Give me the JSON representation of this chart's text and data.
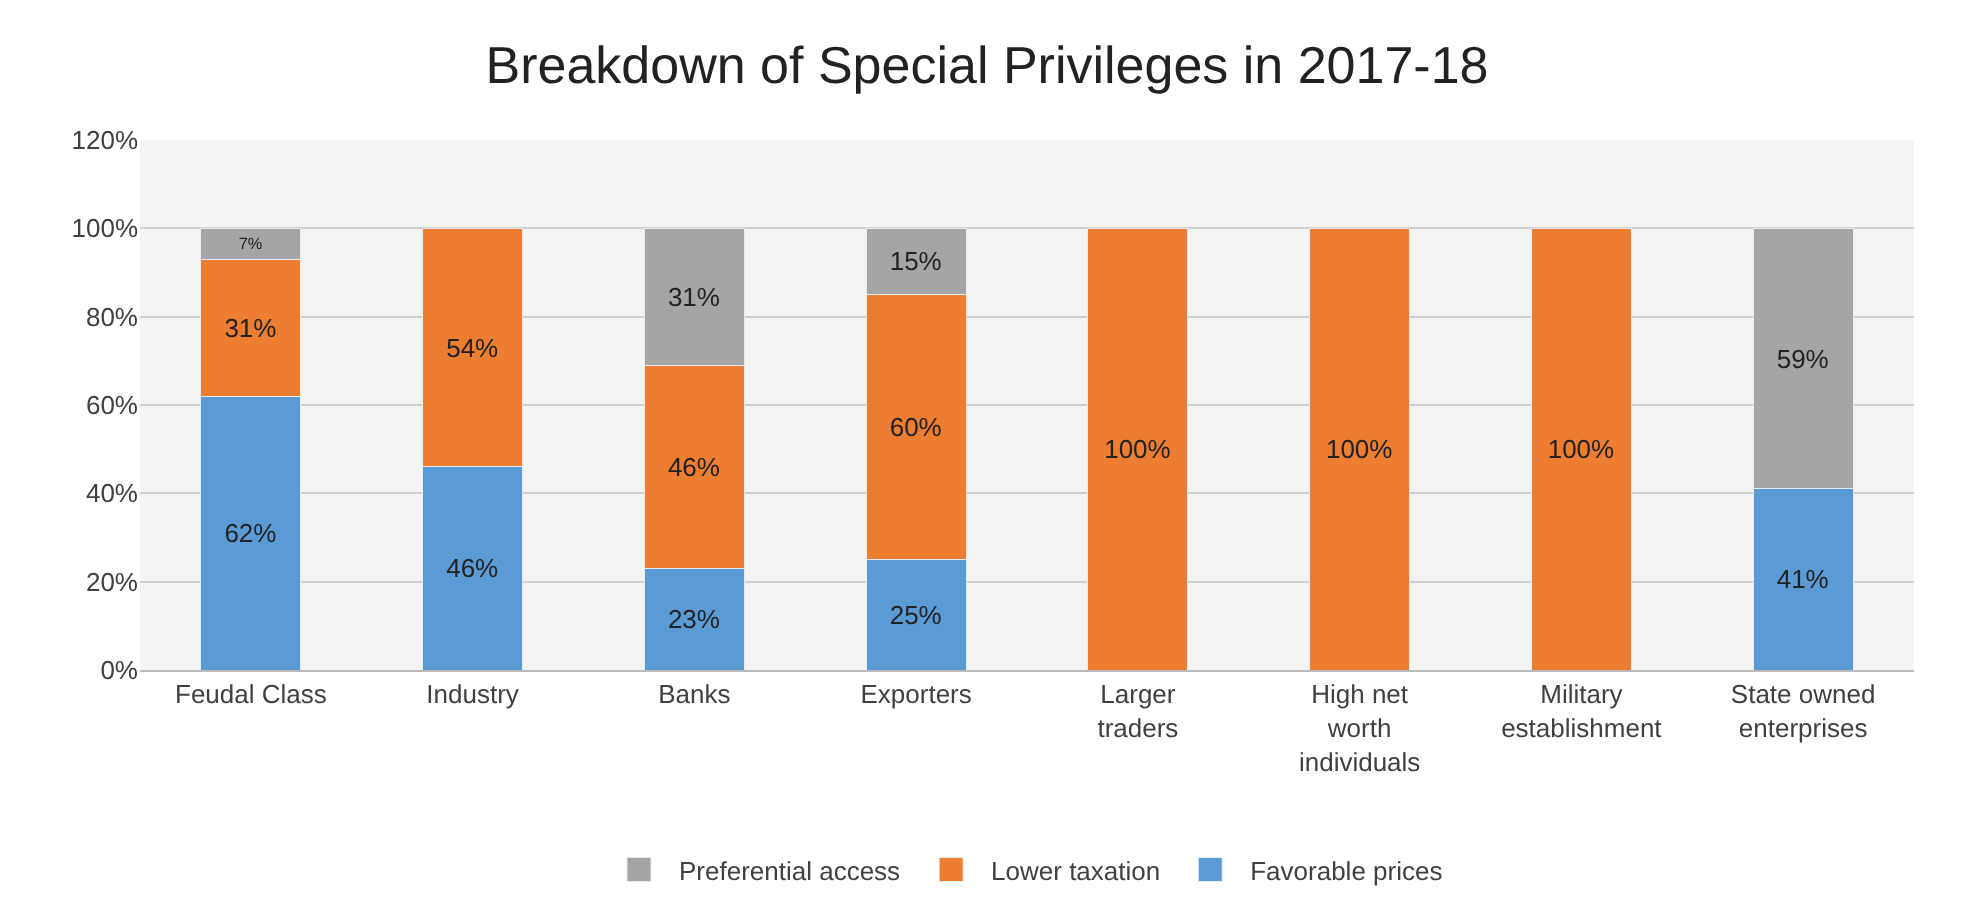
{
  "chart_data": {
    "type": "bar",
    "title": "Breakdown of Special Privileges in 2017-18",
    "stacked": true,
    "categories": [
      "Feudal Class",
      "Industry",
      "Banks",
      "Exporters",
      "Larger traders",
      "High net worth individuals",
      "Military establishment",
      "State owned enterprises"
    ],
    "series": [
      {
        "name": "Favorable prices",
        "color": "#5b9bd5",
        "values": [
          62,
          46,
          23,
          25,
          null,
          null,
          null,
          41
        ],
        "value_labels": [
          "62%",
          "46%",
          "23%",
          "25%",
          null,
          null,
          null,
          "41%"
        ]
      },
      {
        "name": "Lower taxation",
        "color": "#ed7d31",
        "values": [
          31,
          54,
          46,
          60,
          100,
          100,
          100,
          null
        ],
        "value_labels": [
          "31%",
          "54%",
          "46%",
          "60%",
          "100%",
          "100%",
          "100%",
          null
        ]
      },
      {
        "name": "Preferential access",
        "color": "#a5a5a5",
        "values": [
          7,
          null,
          31,
          15,
          null,
          null,
          null,
          59
        ],
        "value_labels": [
          "7%",
          null,
          "31%",
          "15%",
          null,
          null,
          null,
          "59%"
        ]
      }
    ],
    "ylim": [
      0,
      120
    ],
    "yticks": [
      {
        "value": 0,
        "label": "0%"
      },
      {
        "value": 20,
        "label": "20%"
      },
      {
        "value": 40,
        "label": "40%"
      },
      {
        "value": 60,
        "label": "60%"
      },
      {
        "value": 80,
        "label": "80%"
      },
      {
        "value": 100,
        "label": "100%"
      },
      {
        "value": 120,
        "label": "120%"
      }
    ],
    "grid": "y",
    "legend": "bottom"
  }
}
